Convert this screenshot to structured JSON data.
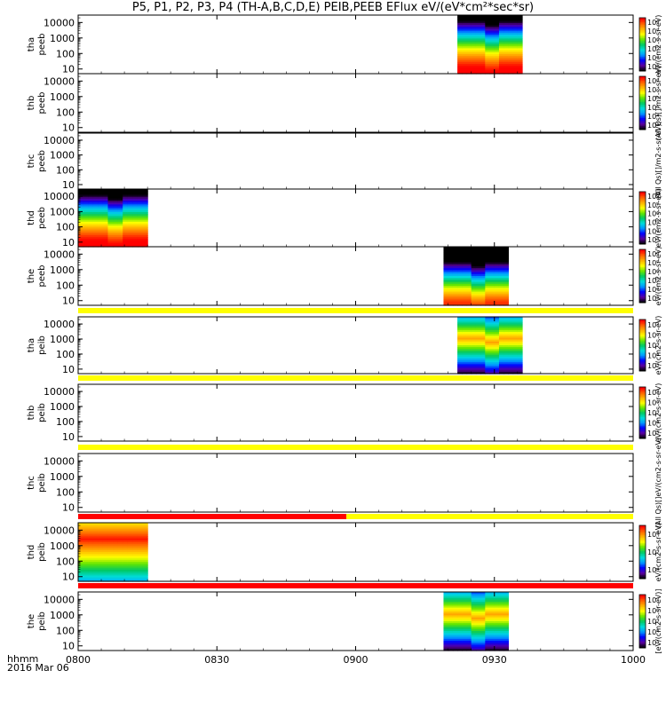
{
  "title": "P5, P1, P2, P3, P4 (TH-A,B,C,D,E) PEIB,PEEB EFlux eV/(eV*cm²*sec*sr)",
  "footer": {
    "hhmm": "hhmm",
    "date": "2016 Mar 06"
  },
  "chart_data": {
    "type": "heatmap",
    "x_ticks": [
      "0800",
      "0830",
      "0900",
      "0930",
      "1000"
    ],
    "x_range_minutes": [
      0,
      120
    ],
    "y_scale": "log",
    "y_ticks": [
      "10",
      "100",
      "1000",
      "10000"
    ],
    "y_range_eV": [
      5,
      30000
    ],
    "colormap": [
      "#000000",
      "#5a00a0",
      "#0000ff",
      "#0096ff",
      "#00dcdc",
      "#00c864",
      "#64e600",
      "#ffff00",
      "#ffb400",
      "#ff6400",
      "#ff0000"
    ],
    "panels": [
      {
        "probe": "tha",
        "product": "peeb",
        "data_start_min": 82,
        "data_end_min": 96,
        "spectrum_profile": "electron",
        "colorbar": {
          "labels": [
            "10³",
            "10⁴",
            "10⁵",
            "10⁶",
            "10⁷",
            "10⁸"
          ]
        },
        "unit": "eV/(cm2-s-sr-eV)",
        "top_strip": ""
      },
      {
        "probe": "thb",
        "product": "peeb",
        "data_start_min": null,
        "data_end_min": null,
        "spectrum_profile": "none",
        "colorbar": {
          "labels": [
            "10³",
            "10⁴",
            "10⁵",
            "10⁶",
            "10⁷",
            "10⁸"
          ]
        },
        "unit": "(AlI Qs)[]/m2-s-sr-eV)",
        "top_strip": ""
      },
      {
        "probe": "thc",
        "product": "peeb",
        "data_start_min": null,
        "data_end_min": null,
        "spectrum_profile": "none",
        "colorbar": null,
        "unit": "(AlI Qs)[]/m2-s-sr-eV)",
        "top_strip": ""
      },
      {
        "probe": "thd",
        "product": "peeb",
        "data_start_min": 0,
        "data_end_min": 15,
        "spectrum_profile": "electron",
        "colorbar": {
          "labels": [
            "10³",
            "10⁴",
            "10⁵",
            "10⁶",
            "10⁷",
            "10⁸"
          ]
        },
        "unit": "eV/(cm2-s-sr-eV)",
        "top_strip": ""
      },
      {
        "probe": "the",
        "product": "peeb",
        "data_start_min": 79,
        "data_end_min": 93,
        "spectrum_profile": "electron_low",
        "colorbar": {
          "labels": [
            "10³",
            "10⁴",
            "10⁵",
            "10⁶",
            "10⁷",
            "10⁸"
          ]
        },
        "unit": "eV/(cm2-s-sr-eV)",
        "top_strip": ""
      },
      {
        "probe": "tha",
        "product": "peib",
        "data_start_min": 82,
        "data_end_min": 96,
        "spectrum_profile": "ion",
        "colorbar": {
          "labels": [
            "10³",
            "10⁴",
            "10⁵",
            "10⁶",
            "10⁷"
          ]
        },
        "unit": "eV/(cm2-s-sr-eV)",
        "top_strip": "yellow"
      },
      {
        "probe": "thb",
        "product": "peib",
        "data_start_min": null,
        "data_end_min": null,
        "spectrum_profile": "none",
        "colorbar": {
          "labels": [
            "10³",
            "10⁴",
            "10⁵",
            "10⁶",
            "10⁷"
          ]
        },
        "unit": "eV/(cm2-s-sr-eV)",
        "top_strip": "yellow"
      },
      {
        "probe": "thc",
        "product": "peib",
        "data_start_min": null,
        "data_end_min": null,
        "spectrum_profile": "none",
        "colorbar": null,
        "unit": "(AlI Qs)[]eV/(cm2-s-sr-eV)",
        "top_strip": "yellow"
      },
      {
        "probe": "thd",
        "product": "peib",
        "data_start_min": 0,
        "data_end_min": 15,
        "spectrum_profile": "ion_hot",
        "colorbar": {
          "labels": [
            "10⁴",
            "10⁵",
            "10⁶"
          ]
        },
        "unit": "eV/(cm2-s-sr-eV)",
        "top_strip": "red_yellow",
        "strip_split_min": 58
      },
      {
        "probe": "the",
        "product": "peib",
        "data_start_min": 79,
        "data_end_min": 93,
        "spectrum_profile": "ion",
        "colorbar": {
          "labels": [
            "10³",
            "10⁴",
            "10⁵",
            "10⁶",
            "10⁷"
          ]
        },
        "unit": "[eV/(cm2-s-sr-eV)]",
        "top_strip": "red"
      }
    ]
  }
}
